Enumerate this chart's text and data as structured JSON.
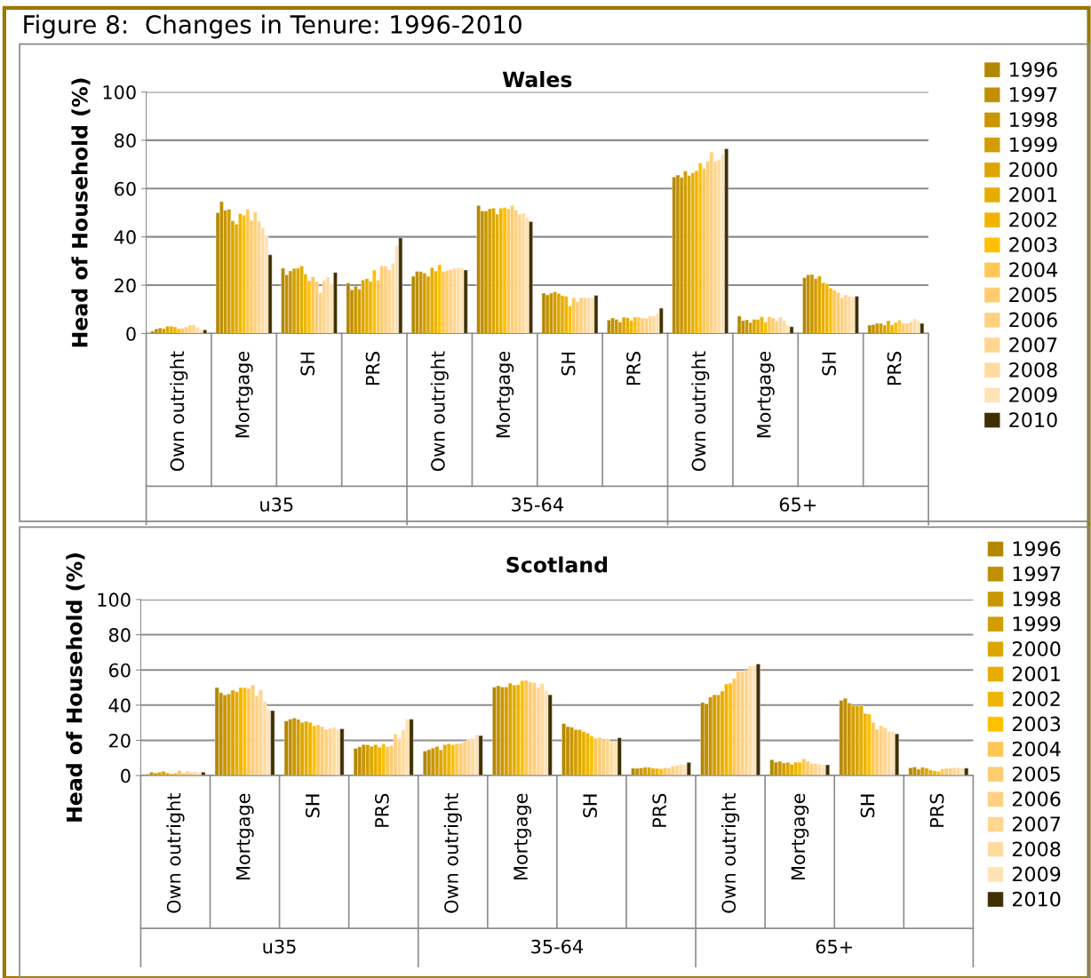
{
  "chart_data": [
    {
      "type": "bar",
      "title": "Figure 8:  Changes in Tenure: 1996-2010",
      "subtitle": "Wales",
      "ylabel": "Head of Household (%)",
      "categories": [
        "Own outright",
        "Mortgage",
        "SH",
        "PRS",
        "Own outright",
        "Mortgage",
        "SH",
        "PRS",
        "Own outright",
        "Mortgage",
        "SH",
        "PRS"
      ],
      "annotations": [
        "u35",
        "35-64",
        "65+"
      ],
      "ylim": [
        0,
        100
      ],
      "yticks": [
        0,
        20,
        40,
        60,
        80,
        100
      ],
      "grid": "y",
      "legend": "right",
      "series": [
        {
          "name": "1996",
          "color": "#b38600",
          "values": [
            1.0,
            50.0,
            27.0,
            20.9,
            23.7,
            53.0,
            16.7,
            5.6,
            64.8,
            7.2,
            23.1,
            3.5
          ]
        },
        {
          "name": "1997",
          "color": "#bf8f00",
          "values": [
            1.9,
            54.6,
            24.3,
            18.1,
            25.7,
            50.7,
            16.0,
            6.4,
            65.6,
            5.3,
            24.3,
            3.7
          ]
        },
        {
          "name": "1998",
          "color": "#c99500",
          "values": [
            2.3,
            51.0,
            25.9,
            19.6,
            25.6,
            50.7,
            16.7,
            5.9,
            64.6,
            5.7,
            24.4,
            4.2
          ]
        },
        {
          "name": "1999",
          "color": "#d29d00",
          "values": [
            2.0,
            51.5,
            26.9,
            18.4,
            25.0,
            51.6,
            17.3,
            4.8,
            67.3,
            4.6,
            22.7,
            4.2
          ]
        },
        {
          "name": "2000",
          "color": "#dca500",
          "values": [
            3.0,
            46.7,
            27.0,
            22.1,
            23.7,
            51.9,
            16.5,
            6.8,
            65.4,
            5.9,
            23.8,
            3.5
          ]
        },
        {
          "name": "2001",
          "color": "#e6ad00",
          "values": [
            3.0,
            45.3,
            27.9,
            22.7,
            27.3,
            49.4,
            15.7,
            6.5,
            66.5,
            5.8,
            21.0,
            5.3
          ]
        },
        {
          "name": "2002",
          "color": "#f0b400",
          "values": [
            2.7,
            49.6,
            24.6,
            21.6,
            25.9,
            51.9,
            15.4,
            5.4,
            67.4,
            6.9,
            20.7,
            3.6
          ]
        },
        {
          "name": "2003",
          "color": "#ffc000",
          "values": [
            2.0,
            49.0,
            21.9,
            26.3,
            28.5,
            52.2,
            11.4,
            6.8,
            70.6,
            4.8,
            18.8,
            4.6
          ]
        },
        {
          "name": "2004",
          "color": "#ffc755",
          "values": [
            2.2,
            51.5,
            23.5,
            22.0,
            25.7,
            51.6,
            14.8,
            6.8,
            68.3,
            7.0,
            18.0,
            5.6
          ]
        },
        {
          "name": "2005",
          "color": "#ffcc70",
          "values": [
            2.7,
            46.9,
            21.5,
            27.9,
            26.0,
            53.0,
            13.2,
            6.4,
            71.2,
            6.4,
            17.0,
            4.1
          ]
        },
        {
          "name": "2006",
          "color": "#ffd080",
          "values": [
            3.5,
            50.4,
            16.9,
            27.9,
            26.4,
            51.1,
            14.9,
            6.3,
            75.1,
            5.2,
            14.8,
            4.1
          ]
        },
        {
          "name": "2007",
          "color": "#ffd590",
          "values": [
            3.7,
            46.5,
            22.0,
            26.4,
            27.0,
            49.4,
            14.9,
            7.2,
            71.4,
            6.8,
            16.0,
            4.8
          ]
        },
        {
          "name": "2008",
          "color": "#ffdba0",
          "values": [
            2.5,
            43.7,
            23.3,
            29.1,
            27.3,
            49.8,
            14.8,
            7.2,
            72.0,
            5.4,
            15.4,
            6.0
          ]
        },
        {
          "name": "2009",
          "color": "#ffe2b5",
          "values": [
            1.5,
            40.4,
            20.6,
            36.4,
            27.3,
            48.1,
            14.9,
            8.3,
            74.3,
            3.5,
            15.1,
            5.4
          ]
        },
        {
          "name": "2010",
          "color": "#3f3000",
          "values": [
            1.5,
            32.6,
            25.3,
            39.6,
            26.3,
            46.3,
            15.8,
            10.5,
            76.5,
            2.8,
            15.4,
            4.2
          ]
        }
      ]
    },
    {
      "type": "bar",
      "title": "Scotland",
      "ylabel": "Head of Household (%)",
      "categories": [
        "Own outright",
        "Mortgage",
        "SH",
        "PRS",
        "Own outright",
        "Mortgage",
        "SH",
        "PRS",
        "Own outright",
        "Mortgage",
        "SH",
        "PRS"
      ],
      "annotations": [
        "u35",
        "35-64",
        "65+"
      ],
      "ylim": [
        0,
        100
      ],
      "yticks": [
        0,
        20,
        40,
        60,
        80,
        100
      ],
      "grid": "y",
      "legend": "right",
      "series": [
        {
          "name": "1996",
          "color": "#b38600",
          "values": [
            0.8,
            50.0,
            31.0,
            15.4,
            13.9,
            50.2,
            29.5,
            4.2,
            41.5,
            9.0,
            42.7,
            4.4
          ]
        },
        {
          "name": "1997",
          "color": "#bf8f00",
          "values": [
            1.9,
            47.1,
            32.0,
            16.3,
            14.7,
            51.0,
            27.8,
            4.1,
            40.8,
            7.6,
            43.9,
            4.9
          ]
        },
        {
          "name": "1998",
          "color": "#c99500",
          "values": [
            1.4,
            45.8,
            32.7,
            17.6,
            15.6,
            50.3,
            27.5,
            4.4,
            44.6,
            8.1,
            41.2,
            3.6
          ]
        },
        {
          "name": "1999",
          "color": "#d29d00",
          "values": [
            1.9,
            46.4,
            31.9,
            17.5,
            16.6,
            50.3,
            26.1,
            4.7,
            45.9,
            7.1,
            39.7,
            4.7
          ]
        },
        {
          "name": "2000",
          "color": "#dca500",
          "values": [
            2.4,
            48.5,
            30.2,
            16.6,
            14.6,
            52.5,
            26.1,
            4.7,
            45.9,
            7.5,
            39.7,
            4.2
          ]
        },
        {
          "name": "2001",
          "color": "#e6ad00",
          "values": [
            1.5,
            47.6,
            30.8,
            17.6,
            17.6,
            51.4,
            24.9,
            4.2,
            48.0,
            6.4,
            39.7,
            3.2
          ]
        },
        {
          "name": "2002",
          "color": "#f0b400",
          "values": [
            1.0,
            50.0,
            30.2,
            16.1,
            18.1,
            51.7,
            24.1,
            4.1,
            52.0,
            7.6,
            35.3,
            2.7
          ]
        },
        {
          "name": "2003",
          "color": "#ffc000",
          "values": [
            1.4,
            50.0,
            28.3,
            18.1,
            17.6,
            53.9,
            22.5,
            3.9,
            52.4,
            7.6,
            34.9,
            2.4
          ]
        },
        {
          "name": "2004",
          "color": "#ffc755",
          "values": [
            2.9,
            49.3,
            28.8,
            16.4,
            18.1,
            54.2,
            21.2,
            4.4,
            55.1,
            9.5,
            30.2,
            3.7
          ]
        },
        {
          "name": "2005",
          "color": "#ffcc70",
          "values": [
            1.5,
            51.4,
            27.8,
            16.9,
            18.3,
            53.1,
            21.7,
            4.4,
            59.2,
            8.1,
            26.3,
            4.1
          ]
        },
        {
          "name": "2006",
          "color": "#ffd080",
          "values": [
            2.5,
            45.3,
            26.3,
            23.6,
            19.5,
            52.7,
            20.0,
            5.4,
            59.2,
            6.9,
            28.3,
            4.2
          ]
        },
        {
          "name": "2007",
          "color": "#ffd590",
          "values": [
            1.9,
            48.6,
            26.8,
            20.5,
            20.5,
            50.0,
            21.0,
            5.9,
            59.7,
            6.9,
            27.1,
            4.4
          ]
        },
        {
          "name": "2008",
          "color": "#ffdba0",
          "values": [
            2.2,
            42.0,
            27.5,
            25.8,
            20.3,
            52.2,
            19.3,
            6.3,
            62.2,
            6.4,
            25.1,
            4.4
          ]
        },
        {
          "name": "2009",
          "color": "#ffe2b5",
          "values": [
            1.7,
            37.8,
            26.3,
            32.0,
            23.2,
            48.5,
            19.3,
            6.4,
            62.7,
            6.1,
            25.1,
            4.1
          ]
        },
        {
          "name": "2010",
          "color": "#3f3000",
          "values": [
            2.0,
            36.9,
            26.6,
            32.0,
            22.7,
            45.9,
            21.5,
            7.5,
            63.4,
            6.1,
            23.7,
            4.2
          ]
        }
      ]
    }
  ]
}
